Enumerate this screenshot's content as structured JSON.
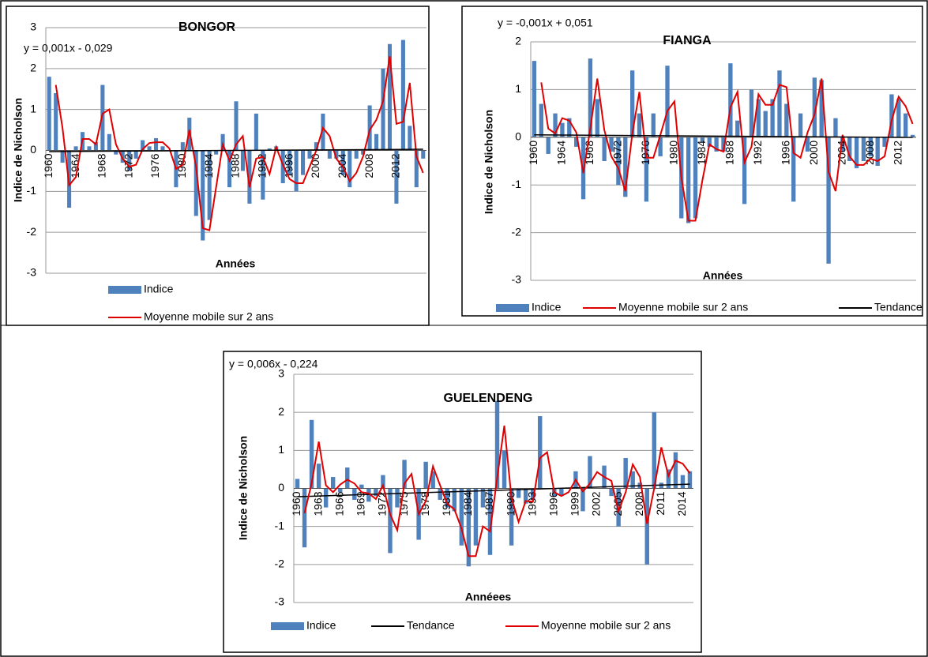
{
  "chart_data": [
    {
      "type": "bar",
      "title": "BONGOR",
      "equation": "y = 0,001x - 0,029",
      "x_label": "Années",
      "y_label": "Indice de Nicholson",
      "categories": [
        "1960",
        null,
        null,
        null,
        "1964",
        null,
        null,
        null,
        "1968",
        null,
        null,
        null,
        "1972",
        null,
        null,
        null,
        "1976",
        null,
        null,
        null,
        "1980",
        null,
        null,
        null,
        "1984",
        null,
        null,
        null,
        "1988",
        null,
        null,
        null,
        "1992",
        null,
        null,
        null,
        "1996",
        null,
        null,
        null,
        "2000",
        null,
        null,
        null,
        "2004",
        null,
        null,
        null,
        "2008",
        null,
        null,
        null,
        "2012",
        null,
        null,
        null,
        null
      ],
      "series": [
        {
          "name": "Indice",
          "type": "bar",
          "color": "#4f81bd",
          "values": [
            1.8,
            1.4,
            -0.3,
            -1.4,
            0.1,
            0.45,
            0.1,
            0.2,
            1.6,
            0.4,
            -0.1,
            -0.3,
            -0.5,
            -0.2,
            0.25,
            0.1,
            0.3,
            0.1,
            0.0,
            -0.9,
            0.2,
            0.8,
            -1.6,
            -2.2,
            -1.7,
            -0.1,
            0.4,
            -0.9,
            1.2,
            -0.5,
            -1.3,
            0.9,
            -1.2,
            0.05,
            0.1,
            -0.8,
            -0.6,
            -1.0,
            -0.6,
            -0.2,
            0.2,
            0.9,
            -0.2,
            -0.2,
            -0.6,
            -0.9,
            -0.2,
            -0.1,
            1.1,
            0.4,
            2.0,
            2.6,
            -1.3,
            2.7,
            0.6,
            -0.9,
            -0.2
          ]
        },
        {
          "name": "Moyenne mobile sur 2 ans",
          "type": "line",
          "color": "#e00000",
          "values": [
            null,
            1.6,
            0.55,
            -0.85,
            -0.65,
            0.28,
            0.28,
            0.15,
            0.9,
            1.0,
            0.15,
            -0.2,
            -0.4,
            -0.35,
            0.03,
            0.18,
            0.2,
            0.2,
            0.05,
            -0.45,
            -0.35,
            0.5,
            -0.4,
            -1.9,
            -1.95,
            -0.9,
            0.15,
            -0.25,
            0.15,
            0.35,
            -0.9,
            -0.2,
            -0.15,
            -0.58,
            0.08,
            -0.35,
            -0.7,
            -0.8,
            -0.8,
            -0.4,
            0.0,
            0.55,
            0.35,
            -0.2,
            -0.4,
            -0.75,
            -0.55,
            -0.15,
            0.5,
            0.75,
            1.2,
            2.3,
            0.65,
            0.7,
            1.65,
            -0.15,
            -0.55
          ]
        },
        {
          "type": "trend",
          "color": "#000000",
          "x": [
            1960,
            2016
          ],
          "values": [
            -0.028,
            0.028
          ]
        }
      ],
      "ylim": [
        -3,
        3
      ],
      "yticks": [
        -3,
        -2,
        -1,
        0,
        1,
        2,
        3
      ],
      "grid": true
    },
    {
      "type": "bar",
      "title": "FIANGA",
      "equation": "y = -0,001x + 0,051",
      "x_label": "Années",
      "y_label": "Indice de Nicholson",
      "categories": [
        "1960",
        null,
        null,
        null,
        "1964",
        null,
        null,
        null,
        "1968",
        null,
        null,
        null,
        "1972",
        null,
        null,
        null,
        "1976",
        null,
        null,
        null,
        "1980",
        null,
        null,
        null,
        "1984",
        null,
        null,
        null,
        "1988",
        null,
        null,
        null,
        "1992",
        null,
        null,
        null,
        "1996",
        null,
        null,
        null,
        "2000",
        null,
        null,
        null,
        "2004",
        null,
        null,
        null,
        "2008",
        null,
        null,
        null,
        "2012",
        null,
        null
      ],
      "series": [
        {
          "name": "Indice",
          "type": "bar",
          "color": "#4f81bd",
          "values": [
            1.6,
            0.7,
            -0.35,
            0.5,
            0.3,
            0.4,
            -0.2,
            -1.3,
            1.65,
            0.8,
            -0.5,
            -0.3,
            -1.0,
            -1.25,
            1.4,
            0.5,
            -1.35,
            0.5,
            -0.4,
            1.5,
            0.0,
            -1.7,
            -1.8,
            -1.7,
            -0.1,
            -0.2,
            -0.3,
            -0.3,
            1.55,
            0.35,
            -1.4,
            1.0,
            0.8,
            0.55,
            0.8,
            1.4,
            0.7,
            -1.35,
            0.5,
            -0.3,
            1.25,
            1.2,
            -2.65,
            0.4,
            -0.3,
            -0.5,
            -0.65,
            -0.5,
            -0.4,
            -0.6,
            -0.2,
            0.9,
            0.8,
            0.5,
            0.05
          ]
        },
        {
          "name": "Moyenne mobile sur 2 ans",
          "type": "line",
          "color": "#e00000",
          "values": [
            null,
            1.15,
            0.18,
            0.08,
            0.4,
            0.35,
            0.1,
            -0.75,
            0.18,
            1.23,
            0.15,
            -0.4,
            -0.65,
            -1.13,
            0.08,
            0.95,
            -0.43,
            -0.43,
            0.05,
            0.55,
            0.75,
            -0.85,
            -1.75,
            -1.75,
            -0.9,
            -0.15,
            -0.25,
            -0.3,
            0.63,
            0.95,
            -0.53,
            -0.2,
            0.9,
            0.68,
            0.68,
            1.1,
            1.05,
            -0.33,
            -0.43,
            0.1,
            0.48,
            1.23,
            -0.73,
            -1.13,
            0.05,
            -0.4,
            -0.58,
            -0.58,
            -0.45,
            -0.5,
            -0.4,
            0.35,
            0.85,
            0.65,
            0.28
          ]
        },
        {
          "name": "Tendance",
          "type": "trend",
          "color": "#000000",
          "x": [
            1960,
            2014
          ],
          "values": [
            0.05,
            -0.004
          ]
        }
      ],
      "ylim": [
        -3,
        2
      ],
      "yticks": [
        -3,
        -2,
        -1,
        0,
        1,
        2
      ],
      "grid": true
    },
    {
      "type": "bar",
      "title": "GUELENDENG",
      "equation": "y = 0,006x - 0,224",
      "x_label": "Annéees",
      "y_label": "Indice de Nicholson",
      "categories": [
        "1960",
        null,
        null,
        "1963",
        null,
        null,
        "1966",
        null,
        null,
        "1969",
        null,
        null,
        "1972",
        null,
        null,
        "1975",
        null,
        null,
        "1978",
        null,
        null,
        "1981",
        null,
        null,
        "1984",
        null,
        null,
        "1987",
        null,
        null,
        "1990",
        null,
        null,
        "1993",
        null,
        null,
        "1996",
        null,
        null,
        "1999",
        null,
        null,
        "2002",
        null,
        null,
        "2005",
        null,
        null,
        "2008",
        null,
        null,
        "2011",
        null,
        null,
        "2014",
        null
      ],
      "series": [
        {
          "name": "Indice",
          "type": "bar",
          "color": "#4f81bd",
          "values": [
            0.25,
            -1.55,
            1.8,
            0.65,
            -0.5,
            0.3,
            -0.1,
            0.55,
            -0.3,
            0.1,
            -0.35,
            -0.2,
            0.35,
            -1.7,
            -0.5,
            0.75,
            0.0,
            -1.35,
            0.7,
            0.45,
            -0.3,
            -0.5,
            -0.6,
            -1.5,
            -2.05,
            -1.5,
            -0.5,
            -1.75,
            2.3,
            1.0,
            -1.5,
            -0.25,
            -0.4,
            -0.3,
            1.9,
            0.0,
            -0.2,
            -0.2,
            0.0,
            0.45,
            -0.6,
            0.85,
            0.0,
            0.6,
            -0.2,
            -1.0,
            0.8,
            0.45,
            0.15,
            -2.0,
            2.0,
            0.15,
            0.5,
            0.95,
            0.35,
            0.45
          ]
        },
        {
          "name": "Tendance",
          "type": "trend",
          "color": "#000000",
          "x": [
            1960,
            2015
          ],
          "values": [
            -0.218,
            0.112
          ]
        },
        {
          "name": "Moyenne mobile sur 2 ans",
          "type": "line",
          "color": "#e00000",
          "values": [
            null,
            -0.65,
            0.13,
            1.23,
            0.08,
            -0.1,
            0.1,
            0.23,
            0.13,
            -0.1,
            -0.13,
            -0.28,
            0.08,
            -0.68,
            -1.1,
            0.13,
            0.38,
            -0.68,
            -0.33,
            0.58,
            0.08,
            -0.4,
            -0.55,
            -1.05,
            -1.78,
            -1.78,
            -1.0,
            -1.13,
            0.28,
            1.65,
            -0.25,
            -0.88,
            -0.33,
            -0.35,
            0.8,
            0.95,
            -0.1,
            -0.2,
            -0.1,
            0.23,
            -0.08,
            0.13,
            0.43,
            0.3,
            0.2,
            -0.6,
            -0.1,
            0.63,
            0.3,
            -0.93,
            0.0,
            1.08,
            0.33,
            0.73,
            0.65,
            0.4
          ]
        }
      ],
      "ylim": [
        -3,
        3
      ],
      "yticks": [
        -3,
        -2,
        -1,
        0,
        1,
        2,
        3
      ],
      "grid": true
    }
  ]
}
